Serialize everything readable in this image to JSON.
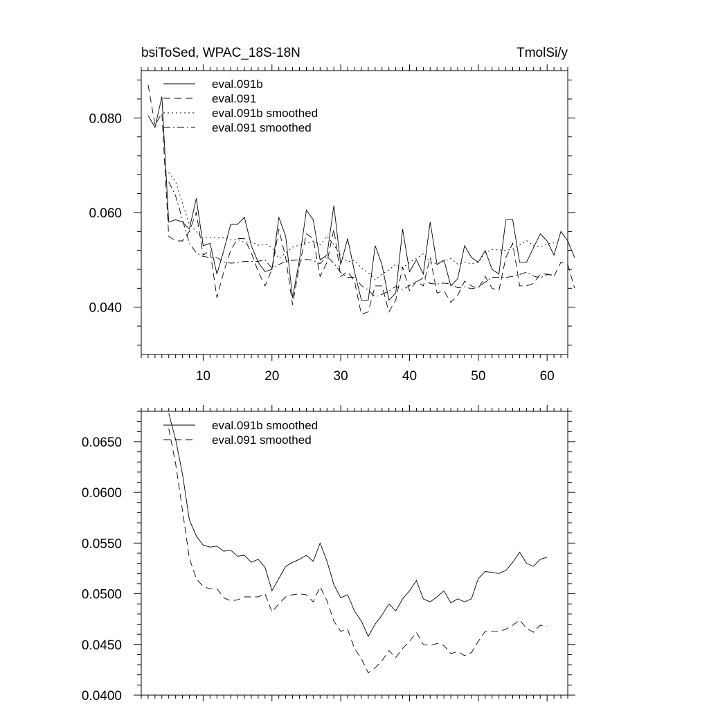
{
  "chart_data": [
    {
      "type": "line",
      "title_left": "bsiToSed, WPAC_18S-18N",
      "title_right": "TmolSi/y",
      "xlim": [
        1,
        63
      ],
      "ylim": [
        0.03,
        0.09
      ],
      "x_ticks": [
        10,
        20,
        30,
        40,
        50,
        60
      ],
      "x_tick_labels": [
        "10",
        "20",
        "30",
        "40",
        "50",
        "60"
      ],
      "y_ticks": [
        0.04,
        0.06,
        0.08
      ],
      "y_tick_labels": [
        "0.040",
        "0.060",
        "0.080"
      ],
      "x_start": 2,
      "series": [
        {
          "name": "eval.091b",
          "dash": "solid",
          "values": [
            0.0805,
            0.078,
            0.0845,
            0.058,
            0.0585,
            0.058,
            0.0565,
            0.063,
            0.053,
            0.0535,
            0.047,
            0.052,
            0.0575,
            0.0575,
            0.059,
            0.053,
            0.0495,
            0.0475,
            0.048,
            0.059,
            0.055,
            0.042,
            0.05,
            0.0605,
            0.0585,
            0.05,
            0.051,
            0.0615,
            0.049,
            0.0545,
            0.0475,
            0.0415,
            0.0415,
            0.053,
            0.049,
            0.0415,
            0.043,
            0.0565,
            0.0475,
            0.05,
            0.047,
            0.058,
            0.049,
            0.05,
            0.0445,
            0.046,
            0.053,
            0.0505,
            0.0495,
            0.052,
            0.048,
            0.047,
            0.0585,
            0.0585,
            0.0495,
            0.0495,
            0.0525,
            0.0555,
            0.054,
            0.051,
            0.056,
            0.054,
            0.0505
          ]
        },
        {
          "name": "eval.091",
          "dash": "dashed",
          "values": [
            0.087,
            0.0785,
            0.081,
            0.055,
            0.054,
            0.054,
            0.056,
            0.06,
            0.051,
            0.052,
            0.042,
            0.0475,
            0.052,
            0.0545,
            0.0545,
            0.0515,
            0.0475,
            0.0445,
            0.048,
            0.0565,
            0.0505,
            0.0405,
            0.049,
            0.0555,
            0.0545,
            0.0465,
            0.0495,
            0.0565,
            0.0465,
            0.0475,
            0.0455,
            0.0385,
            0.039,
            0.0445,
            0.0445,
            0.039,
            0.0415,
            0.0485,
            0.0435,
            0.0455,
            0.0445,
            0.0505,
            0.043,
            0.0435,
            0.041,
            0.0425,
            0.0455,
            0.0445,
            0.044,
            0.0465,
            0.044,
            0.0435,
            0.0505,
            0.0535,
            0.0445,
            0.0445,
            0.045,
            0.047,
            0.047,
            0.0465,
            0.0495,
            0.049,
            0.044
          ]
        },
        {
          "name": "eval.091b smoothed",
          "dash": "dotted",
          "values": [
            null,
            null,
            null,
            0.0685,
            0.0665,
            0.062,
            0.0575,
            0.056,
            0.0545,
            0.0548,
            0.0546,
            0.0547,
            0.0542,
            0.0543,
            0.0537,
            0.0538,
            0.0531,
            0.0534,
            0.0526,
            0.0503,
            0.0515,
            0.0527,
            0.0531,
            0.0534,
            0.054,
            0.0532,
            0.055,
            0.0532,
            0.0509,
            0.0496,
            0.0499,
            0.0483,
            0.0473,
            0.0458,
            0.047,
            0.0479,
            0.049,
            0.0483,
            0.0495,
            0.0503,
            0.0513,
            0.0495,
            0.0492,
            0.0497,
            0.0503,
            0.0491,
            0.0495,
            0.0492,
            0.0495,
            0.0515,
            0.0522,
            0.0521,
            0.052,
            0.0523,
            0.0531,
            0.0541,
            0.053,
            0.0527,
            0.0534,
            0.0536,
            null,
            null,
            null
          ]
        },
        {
          "name": "eval.091 smoothed",
          "dash": "dashdot",
          "values": [
            null,
            null,
            null,
            0.0665,
            0.0635,
            0.0585,
            0.0535,
            0.0515,
            0.0507,
            0.0505,
            0.0505,
            0.0496,
            0.0493,
            0.0494,
            0.0497,
            0.0497,
            0.0497,
            0.05,
            0.0482,
            0.049,
            0.0497,
            0.0499,
            0.05,
            0.0501,
            0.0499,
            0.0492,
            0.0507,
            0.0493,
            0.0473,
            0.0463,
            0.0463,
            0.0446,
            0.0436,
            0.0422,
            0.0427,
            0.0434,
            0.0444,
            0.0437,
            0.0446,
            0.0453,
            0.0462,
            0.045,
            0.0449,
            0.0451,
            0.0449,
            0.0441,
            0.0443,
            0.0439,
            0.0442,
            0.0453,
            0.0463,
            0.0463,
            0.0463,
            0.0465,
            0.0469,
            0.0474,
            0.0466,
            0.0462,
            0.0469,
            0.0468,
            null,
            null,
            null
          ]
        }
      ]
    },
    {
      "type": "line",
      "xlim": [
        1,
        63
      ],
      "ylim": [
        0.04,
        0.068
      ],
      "x_ticks": [
        10,
        20,
        30,
        40,
        50,
        60
      ],
      "y_ticks": [
        0.04,
        0.045,
        0.05,
        0.055,
        0.06,
        0.065
      ],
      "y_tick_labels": [
        "0.0400",
        "0.0450",
        "0.0500",
        "0.0550",
        "0.0600",
        "0.0650"
      ],
      "x_start": 5,
      "series": [
        {
          "name": "eval.091b smoothed",
          "dash": "solid",
          "values": [
            0.0678,
            0.0652,
            0.0618,
            0.0573,
            0.0557,
            0.0548,
            0.0546,
            0.0547,
            0.0542,
            0.0543,
            0.0537,
            0.0538,
            0.0531,
            0.0534,
            0.0526,
            0.0503,
            0.0515,
            0.0527,
            0.0531,
            0.0534,
            0.0538,
            0.0532,
            0.055,
            0.0532,
            0.0509,
            0.0496,
            0.0499,
            0.0483,
            0.0473,
            0.0458,
            0.047,
            0.0479,
            0.049,
            0.0483,
            0.0495,
            0.0503,
            0.0513,
            0.0495,
            0.0492,
            0.0497,
            0.0503,
            0.0491,
            0.0495,
            0.0492,
            0.0495,
            0.0515,
            0.0522,
            0.0521,
            0.052,
            0.0523,
            0.0531,
            0.0541,
            0.053,
            0.0527,
            0.0534,
            0.0536
          ]
        },
        {
          "name": "eval.091 smoothed",
          "dash": "dashed",
          "values": [
            0.0663,
            0.0628,
            0.0582,
            0.0535,
            0.0515,
            0.0507,
            0.0505,
            0.0505,
            0.0496,
            0.0493,
            0.0494,
            0.0497,
            0.0497,
            0.0497,
            0.05,
            0.0482,
            0.049,
            0.0497,
            0.0499,
            0.05,
            0.0499,
            0.0492,
            0.0507,
            0.0493,
            0.0473,
            0.0463,
            0.0465,
            0.0446,
            0.0436,
            0.0422,
            0.0427,
            0.0434,
            0.0444,
            0.0437,
            0.0446,
            0.0453,
            0.0462,
            0.045,
            0.0449,
            0.0451,
            0.0449,
            0.0441,
            0.0443,
            0.0439,
            0.0442,
            0.0453,
            0.0463,
            0.0463,
            0.0463,
            0.0465,
            0.0469,
            0.0474,
            0.0466,
            0.0462,
            0.0469,
            0.0468
          ]
        }
      ]
    }
  ]
}
